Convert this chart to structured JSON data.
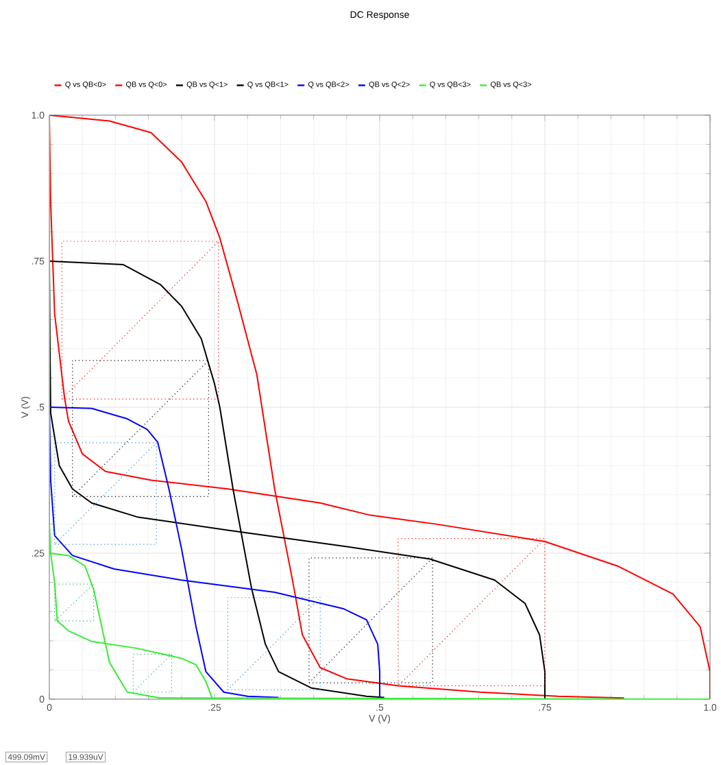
{
  "chart_data": {
    "type": "line",
    "title": "DC Response",
    "xlabel": "V (V)",
    "ylabel": "V (V)",
    "xlim": [
      0,
      1
    ],
    "ylim": [
      0,
      1
    ],
    "xticks": [
      0,
      {
        "value": 0.25,
        "label": ".25"
      },
      {
        "value": 0.5,
        "label": ".5"
      },
      {
        "value": 0.75,
        "label": ".75"
      },
      {
        "value": 1,
        "label": "1.0"
      }
    ],
    "yticks": [
      0,
      {
        "value": 0.25,
        "label": ".25"
      },
      {
        "value": 0.5,
        "label": ".5"
      },
      {
        "value": 0.75,
        "label": ".75"
      },
      {
        "value": 1,
        "label": "1.0"
      }
    ],
    "grid": true,
    "legend": "top left",
    "annotations": [
      "499.09mV",
      "19.939uV"
    ],
    "series": [
      {
        "name": "Q vs QB<0>",
        "color": "#ff0000",
        "x": [
          0,
          0.091,
          0.154,
          0.2,
          0.237,
          0.258,
          0.285,
          0.314,
          0.341,
          0.368,
          0.383,
          0.41,
          0.45,
          0.528,
          0.653,
          0.77,
          0.87
        ],
        "values": [
          1.0,
          0.99,
          0.97,
          0.92,
          0.852,
          0.79,
          0.68,
          0.556,
          0.36,
          0.204,
          0.11,
          0.054,
          0.035,
          0.023,
          0.012,
          0.005,
          0.002
        ]
      },
      {
        "name": "QB vs Q<0>",
        "color": "#ff0000",
        "x": [
          0,
          0.002,
          0.008,
          0.023,
          0.029,
          0.05,
          0.085,
          0.154,
          0.27,
          0.41,
          0.486,
          0.584,
          0.75,
          0.86,
          0.944,
          0.985,
          1.0,
          1.0
        ],
        "values": [
          1.0,
          0.85,
          0.66,
          0.516,
          0.476,
          0.42,
          0.39,
          0.375,
          0.36,
          0.336,
          0.315,
          0.3,
          0.27,
          0.228,
          0.18,
          0.124,
          0.047,
          0
        ]
      },
      {
        "name": "QB vs Q<1>",
        "color": "#000000",
        "x": [
          0,
          0.001,
          0.002,
          0.015,
          0.035,
          0.064,
          0.133,
          0.272,
          0.445,
          0.576,
          0.674,
          0.72,
          0.742,
          0.75,
          0.75
        ],
        "values": [
          0.75,
          0.6,
          0.49,
          0.4,
          0.36,
          0.336,
          0.312,
          0.289,
          0.262,
          0.24,
          0.204,
          0.164,
          0.11,
          0.047,
          0
        ]
      },
      {
        "name": "Q vs QB<1>",
        "color": "#000000",
        "x": [
          0,
          0.112,
          0.168,
          0.2,
          0.23,
          0.25,
          0.258,
          0.278,
          0.306,
          0.327,
          0.347,
          0.397,
          0.48,
          0.507
        ],
        "values": [
          0.75,
          0.744,
          0.71,
          0.673,
          0.617,
          0.54,
          0.5,
          0.36,
          0.19,
          0.094,
          0.047,
          0.019,
          0.005,
          0.003
        ]
      },
      {
        "name": "Q vs QB<2>",
        "color": "#0000ff",
        "x": [
          0,
          0.064,
          0.118,
          0.148,
          0.164,
          0.181,
          0.2,
          0.222,
          0.237,
          0.264,
          0.3,
          0.347
        ],
        "values": [
          0.5,
          0.498,
          0.48,
          0.462,
          0.44,
          0.36,
          0.258,
          0.124,
          0.047,
          0.012,
          0.005,
          0.003
        ]
      },
      {
        "name": "QB vs Q<2>",
        "color": "#0000ff",
        "x": [
          0,
          0.002,
          0.008,
          0.035,
          0.098,
          0.2,
          0.341,
          0.445,
          0.48,
          0.497,
          0.5,
          0.5
        ],
        "values": [
          0.5,
          0.375,
          0.28,
          0.246,
          0.223,
          0.204,
          0.183,
          0.155,
          0.136,
          0.094,
          0.047,
          0
        ]
      },
      {
        "name": "Q vs QB<3>",
        "color": "#33ee33",
        "x": [
          0,
          0.029,
          0.054,
          0.067,
          0.091,
          0.118,
          0.168,
          1.0
        ],
        "values": [
          0.25,
          0.246,
          0.228,
          0.188,
          0.063,
          0.012,
          0.002,
          0
        ]
      },
      {
        "name": "QB vs Q<3>",
        "color": "#33ee33",
        "x": [
          0,
          0,
          0.002,
          0.008,
          0.012,
          0.029,
          0.064,
          0.133,
          0.2,
          0.222,
          0.237,
          0.247
        ],
        "values": [
          1.0,
          0.3,
          0.25,
          0.2,
          0.134,
          0.117,
          0.099,
          0.087,
          0.07,
          0.059,
          0.03,
          0
        ]
      },
      {
        "color": "#ff0000",
        "line_style": "dotted",
        "x": [
          0.019,
          0.256,
          0.256,
          0.019,
          0.019,
          0.256
        ],
        "values": [
          0.514,
          0.514,
          0.784,
          0.784,
          0.514,
          0.784
        ]
      },
      {
        "color": "#ff0000",
        "line_style": "dotted",
        "x": [
          0.528,
          0.75,
          0.75,
          0.528,
          0.528,
          0.75
        ],
        "values": [
          0.023,
          0.023,
          0.275,
          0.275,
          0.023,
          0.275
        ]
      },
      {
        "color": "#000000",
        "line_style": "dotted",
        "x": [
          0.035,
          0.241,
          0.241,
          0.035,
          0.035,
          0.241
        ],
        "values": [
          0.347,
          0.347,
          0.58,
          0.58,
          0.347,
          0.58
        ]
      },
      {
        "color": "#000000",
        "line_style": "dotted",
        "x": [
          0.393,
          0.58,
          0.58,
          0.393,
          0.393,
          0.58
        ],
        "values": [
          0.028,
          0.028,
          0.242,
          0.242,
          0.028,
          0.242
        ]
      },
      {
        "color": "#1e88e5",
        "line_style": "dotted",
        "x": [
          0.008,
          0.162,
          0.162,
          0.008,
          0.008,
          0.162
        ],
        "values": [
          0.265,
          0.265,
          0.439,
          0.439,
          0.265,
          0.439
        ]
      },
      {
        "color": "#1e88e5",
        "line_style": "dotted",
        "x": [
          0.27,
          0.41,
          0.41,
          0.27,
          0.27,
          0.41
        ],
        "values": [
          0.016,
          0.016,
          0.174,
          0.174,
          0.016,
          0.174
        ]
      },
      {
        "color": "#22aa55",
        "line_style": "dotted",
        "x": [
          0.008,
          0.067,
          0.067,
          0.008,
          0.008,
          0.067
        ],
        "values": [
          0.134,
          0.134,
          0.197,
          0.197,
          0.134,
          0.197
        ]
      },
      {
        "color": "#22aa55",
        "line_style": "dotted",
        "x": [
          0.127,
          0.185,
          0.185,
          0.127,
          0.127,
          0.185
        ],
        "values": [
          0.012,
          0.012,
          0.077,
          0.077,
          0.012,
          0.077
        ]
      }
    ]
  }
}
